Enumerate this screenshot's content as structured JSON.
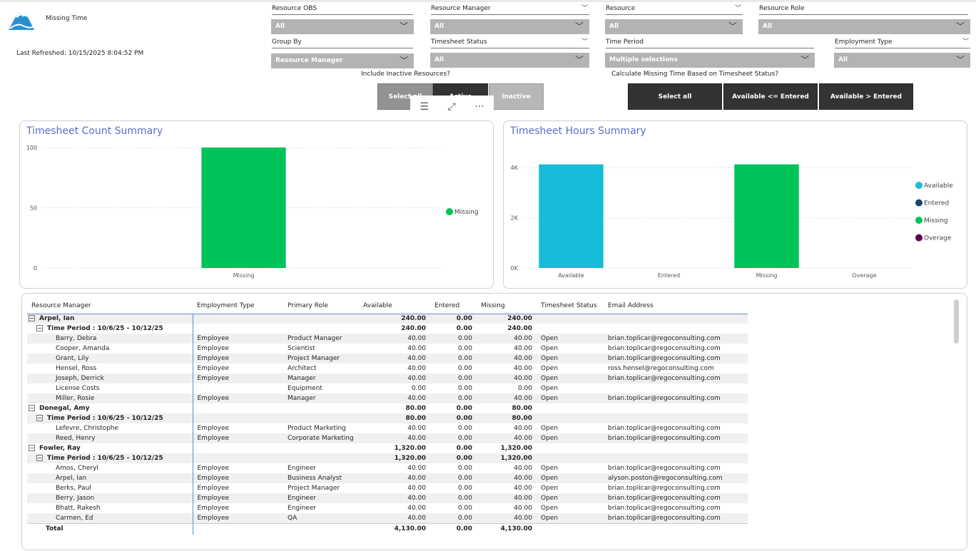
{
  "header": {
    "title": "Missing Time",
    "last_refreshed": "Last Refreshed: 10/15/2025 8:04:52 PM"
  },
  "slicers": {
    "resource_obs": {
      "label": "Resource OBS",
      "value": "All"
    },
    "resource_manager": {
      "label": "Resource Manager",
      "value": "All"
    },
    "resource": {
      "label": "Resource",
      "value": "All"
    },
    "resource_role": {
      "label": "Resource Role",
      "value": "All"
    },
    "group_by": {
      "label": "Group By",
      "value": "Resource Manager"
    },
    "timesheet_status": {
      "label": "Timesheet Status",
      "value": "All"
    },
    "time_period": {
      "label": "Time Period",
      "value": "Multiple selections"
    },
    "employment_type": {
      "label": "Employment Type",
      "value": "All"
    }
  },
  "inactive_toggle": {
    "label": "Include Inactive Resources?",
    "buttons": [
      "Select all",
      "Active",
      "Inactive"
    ]
  },
  "calc_toggle": {
    "label": "Calculate Missing Time Based on Timesheet Status?",
    "buttons": [
      "Select all",
      "Available <= Entered",
      "Available > Entered"
    ]
  },
  "colors": {
    "accent_title": "#5b6dd2",
    "available": "#16bcd8",
    "entered": "#17456e",
    "missing": "#00c35a",
    "overage": "#5b0050"
  },
  "count_chart": {
    "title": "Timesheet Count Summary",
    "chart_data": {
      "type": "bar",
      "categories": [
        "Missing"
      ],
      "values": [
        100
      ],
      "ylim": [
        0,
        100
      ],
      "yticks": [
        "0",
        "50",
        "100"
      ],
      "legend": [
        {
          "name": "Missing",
          "color": "#00c35a"
        }
      ],
      "legend_position": "right"
    }
  },
  "hours_chart": {
    "title": "Timesheet Hours Summary",
    "chart_data": {
      "type": "bar",
      "categories": [
        "Available",
        "Entered",
        "Missing",
        "Overage"
      ],
      "values": [
        4130,
        0,
        4130,
        0
      ],
      "colors": [
        "#16bcd8",
        "#17456e",
        "#00c35a",
        "#5b0050"
      ],
      "ylim": [
        0,
        4800
      ],
      "yticks": [
        {
          "v": 0,
          "label": "0K"
        },
        {
          "v": 2000,
          "label": "2K"
        },
        {
          "v": 4000,
          "label": "4K"
        }
      ],
      "legend": [
        {
          "name": "Available",
          "color": "#16bcd8"
        },
        {
          "name": "Entered",
          "color": "#17456e"
        },
        {
          "name": "Missing",
          "color": "#00c35a"
        },
        {
          "name": "Overage",
          "color": "#5b0050"
        }
      ],
      "legend_position": "right"
    }
  },
  "table": {
    "columns": [
      "Resource Manager",
      "Employment Type",
      "Primary Role",
      "Available",
      "Entered",
      "Missing",
      "Timesheet Status",
      "Email Address"
    ],
    "rows": [
      {
        "level": 0,
        "name": "Arpel, Ian",
        "available": "240.00",
        "entered": "0.00",
        "missing": "240.00"
      },
      {
        "level": 1,
        "name": "Time Period : 10/6/25 - 10/12/25",
        "available": "240.00",
        "entered": "0.00",
        "missing": "240.00"
      },
      {
        "level": 2,
        "name": "Barry, Debra",
        "emp": "Employee",
        "role": "Product Manager",
        "available": "40.00",
        "entered": "0.00",
        "missing": "40.00",
        "status": "Open",
        "email": "brian.toplicar@regoconsulting.com"
      },
      {
        "level": 2,
        "name": "Cooper, Amanda",
        "emp": "Employee",
        "role": "Scientist",
        "available": "40.00",
        "entered": "0.00",
        "missing": "40.00",
        "status": "Open",
        "email": "brian.toplicar@regoconsulting.com"
      },
      {
        "level": 2,
        "name": "Grant, Lily",
        "emp": "Employee",
        "role": "Project Manager",
        "available": "40.00",
        "entered": "0.00",
        "missing": "40.00",
        "status": "Open",
        "email": "brian.toplicar@regoconsulting.com"
      },
      {
        "level": 2,
        "name": "Hensel, Ross",
        "emp": "Employee",
        "role": "Architect",
        "available": "40.00",
        "entered": "0.00",
        "missing": "40.00",
        "status": "Open",
        "email": "ross.hensel@regoconsulting.com"
      },
      {
        "level": 2,
        "name": "Joseph, Derrick",
        "emp": "Employee",
        "role": "Manager",
        "available": "40.00",
        "entered": "0.00",
        "missing": "40.00",
        "status": "Open",
        "email": "brian.toplicar@regoconsulting.com"
      },
      {
        "level": 2,
        "name": "License Costs",
        "emp": "",
        "role": "Equipment",
        "available": "0.00",
        "entered": "0.00",
        "missing": "0.00",
        "status": "Open",
        "email": ""
      },
      {
        "level": 2,
        "name": "Miller, Rosie",
        "emp": "Employee",
        "role": "Manager",
        "available": "40.00",
        "entered": "0.00",
        "missing": "40.00",
        "status": "Open",
        "email": "brian.toplicar@regoconsulting.com"
      },
      {
        "level": 0,
        "name": "Donegal, Amy",
        "available": "80.00",
        "entered": "0.00",
        "missing": "80.00"
      },
      {
        "level": 1,
        "name": "Time Period : 10/6/25 - 10/12/25",
        "available": "80.00",
        "entered": "0.00",
        "missing": "80.00"
      },
      {
        "level": 2,
        "name": "Lefevre, Christophe",
        "emp": "Employee",
        "role": "Product Marketing",
        "available": "40.00",
        "entered": "0.00",
        "missing": "40.00",
        "status": "Open",
        "email": "brian.toplicar@regoconsulting.com"
      },
      {
        "level": 2,
        "name": "Reed, Henry",
        "emp": "Employee",
        "role": "Corporate Marketing",
        "available": "40.00",
        "entered": "0.00",
        "missing": "40.00",
        "status": "Open",
        "email": "brian.toplicar@regoconsulting.com"
      },
      {
        "level": 0,
        "name": "Fowler, Ray",
        "available": "1,320.00",
        "entered": "0.00",
        "missing": "1,320.00"
      },
      {
        "level": 1,
        "name": "Time Period : 10/6/25 - 10/12/25",
        "available": "1,320.00",
        "entered": "0.00",
        "missing": "1,320.00"
      },
      {
        "level": 2,
        "name": "Amos, Cheryl",
        "emp": "Employee",
        "role": "Engineer",
        "available": "40.00",
        "entered": "0.00",
        "missing": "40.00",
        "status": "Open",
        "email": "brian.toplicar@regoconsulting.com"
      },
      {
        "level": 2,
        "name": "Arpel, Ian",
        "emp": "Employee",
        "role": "Business Analyst",
        "available": "40.00",
        "entered": "0.00",
        "missing": "40.00",
        "status": "Open",
        "email": "alyson.poston@regoconsulting.com"
      },
      {
        "level": 2,
        "name": "Berks, Paul",
        "emp": "Employee",
        "role": "Project Manager",
        "available": "40.00",
        "entered": "0.00",
        "missing": "40.00",
        "status": "Open",
        "email": "brian.toplicar@regoconsulting.com"
      },
      {
        "level": 2,
        "name": "Berry, Jason",
        "emp": "Employee",
        "role": "Engineer",
        "available": "40.00",
        "entered": "0.00",
        "missing": "40.00",
        "status": "Open",
        "email": "brian.toplicar@regoconsulting.com"
      },
      {
        "level": 2,
        "name": "Bhatt, Rakesh",
        "emp": "Employee",
        "role": "Engineer",
        "available": "40.00",
        "entered": "0.00",
        "missing": "40.00",
        "status": "Open",
        "email": "brian.toplicar@regoconsulting.com"
      },
      {
        "level": 2,
        "name": "Carmen, Ed",
        "emp": "Employee",
        "role": "QA",
        "available": "40.00",
        "entered": "0.00",
        "missing": "40.00",
        "status": "Open",
        "email": "brian.toplicar@regoconsulting.com"
      }
    ],
    "total": {
      "name": "Total",
      "available": "4,130.00",
      "entered": "0.00",
      "missing": "4,130.00"
    }
  }
}
